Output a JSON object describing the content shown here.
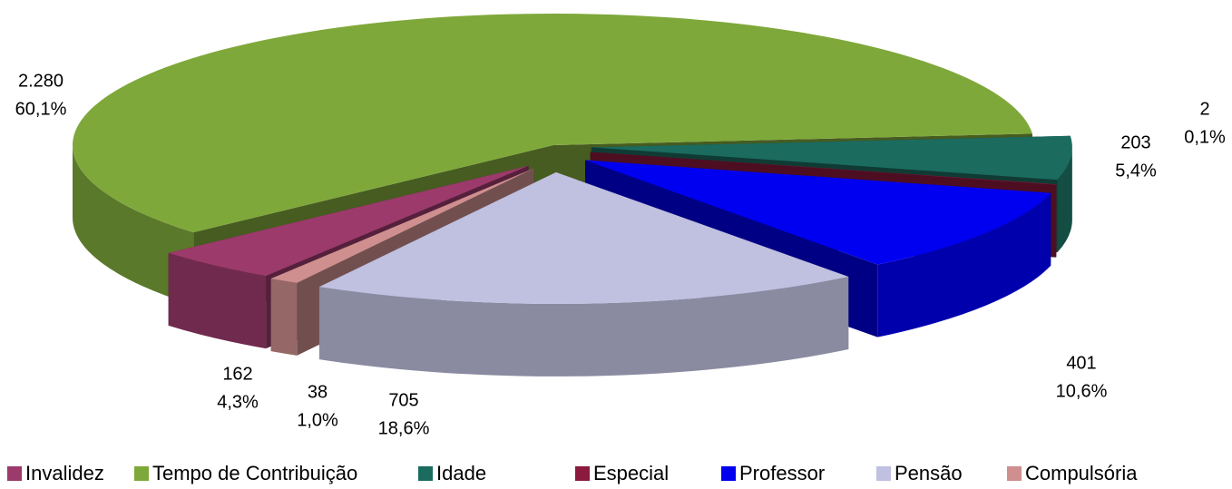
{
  "chart_data": {
    "type": "pie",
    "categories": [
      "Invalidez",
      "Tempo de Contribuição",
      "Idade",
      "Especial",
      "Professor",
      "Pensão",
      "Compulsória"
    ],
    "values": [
      162,
      2280,
      203,
      2,
      401,
      705,
      38
    ],
    "value_labels": [
      "162",
      "2.280",
      "203",
      "2",
      "401",
      "705",
      "38"
    ],
    "percentages": [
      4.3,
      60.1,
      5.4,
      0.1,
      10.6,
      18.6,
      1.0
    ],
    "percentage_labels": [
      "4,3%",
      "60,1%",
      "5,4%",
      "0,1%",
      "10,6%",
      "18,6%",
      "1,0%"
    ],
    "colors": [
      "#9b3a6b",
      "#7fa83a",
      "#1b6b5f",
      "#8c1a3e",
      "#0000f0",
      "#c0c0e0",
      "#cf8f8f"
    ],
    "legend": "bottom"
  }
}
